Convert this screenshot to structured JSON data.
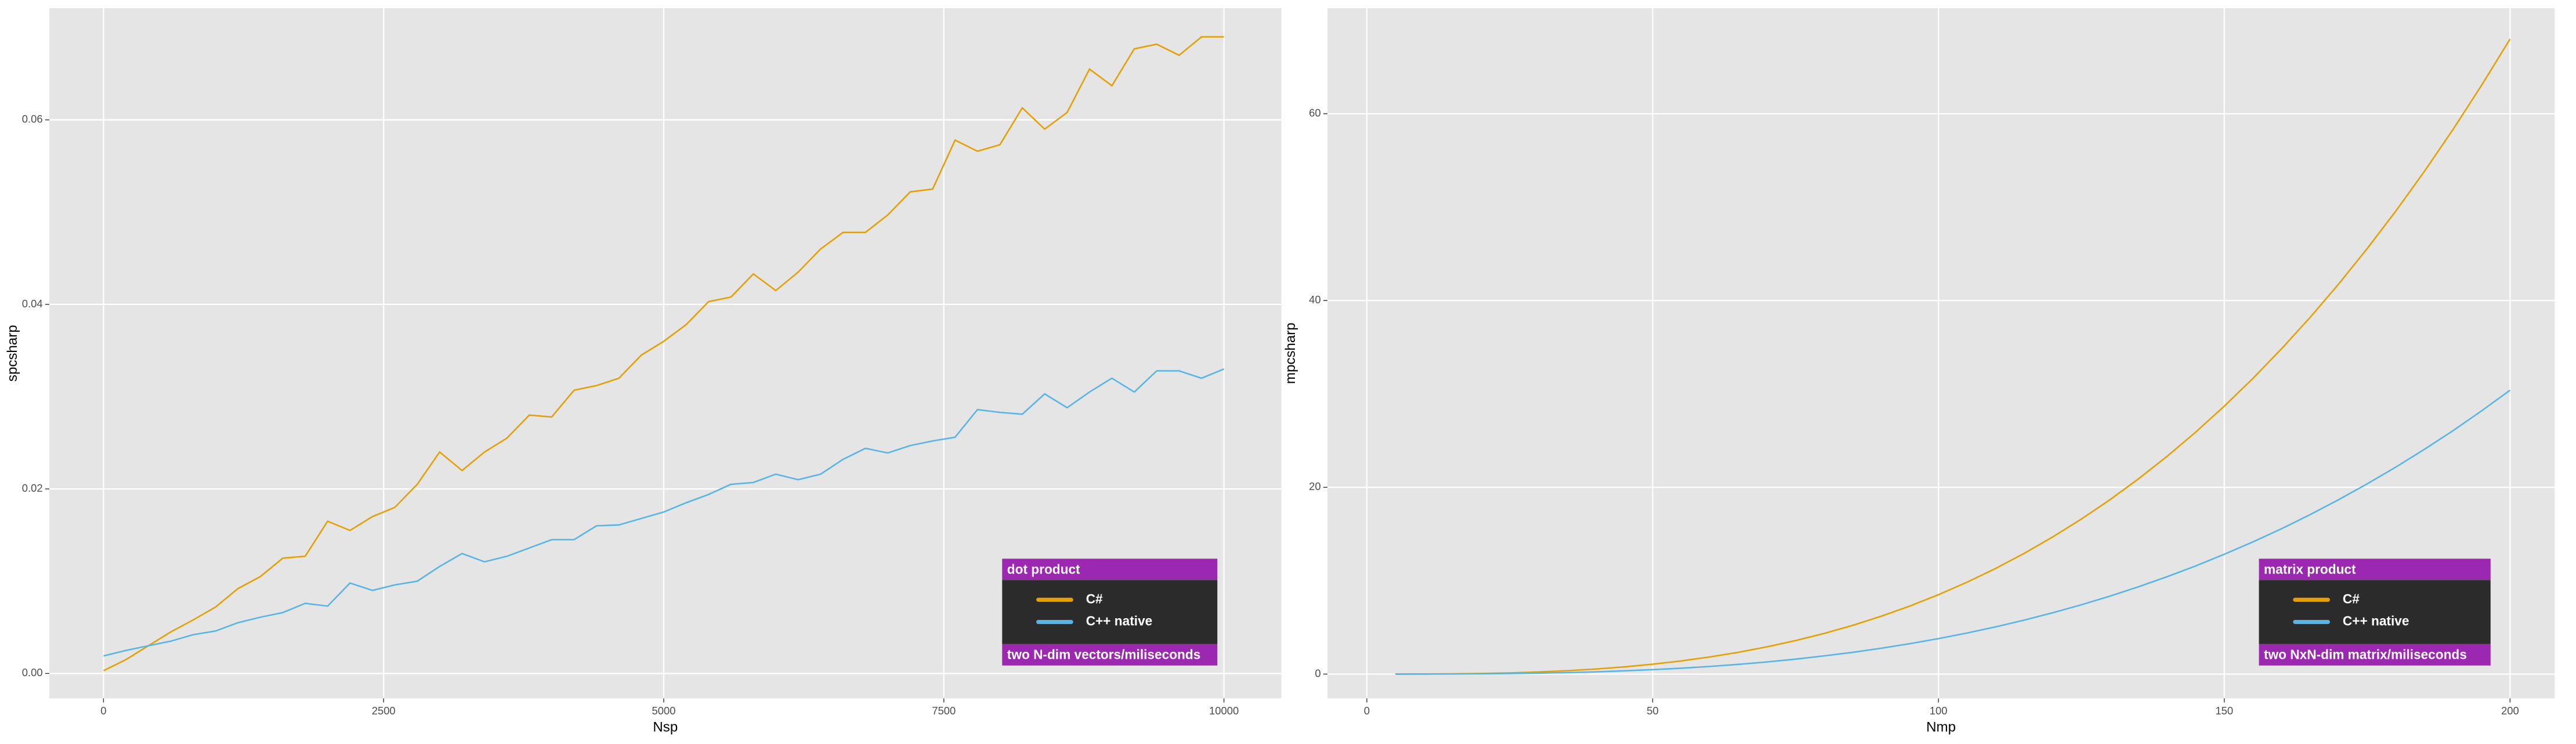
{
  "chart_data": [
    {
      "type": "line",
      "xlabel": "Nsp",
      "ylabel": "spcsharp",
      "x": [
        0,
        200,
        400,
        600,
        800,
        1000,
        1200,
        1400,
        1600,
        1800,
        2000,
        2200,
        2400,
        2600,
        2800,
        3000,
        3200,
        3400,
        3600,
        3800,
        4000,
        4200,
        4400,
        4600,
        4800,
        5000,
        5200,
        5400,
        5600,
        5800,
        6000,
        6200,
        6400,
        6600,
        6800,
        7000,
        7200,
        7400,
        7600,
        7800,
        8000,
        8200,
        8400,
        8600,
        8800,
        9000,
        9200,
        9400,
        9600,
        9800,
        10000
      ],
      "series": [
        {
          "name": "C#",
          "color": "#E69F00",
          "values": [
            0.0003,
            0.0015,
            0.003,
            0.0045,
            0.0058,
            0.0072,
            0.0092,
            0.0105,
            0.0125,
            0.0127,
            0.0165,
            0.0155,
            0.017,
            0.018,
            0.0205,
            0.024,
            0.022,
            0.024,
            0.0255,
            0.028,
            0.0278,
            0.0307,
            0.0312,
            0.032,
            0.0345,
            0.036,
            0.0378,
            0.0403,
            0.0408,
            0.0433,
            0.0415,
            0.0435,
            0.046,
            0.0478,
            0.0478,
            0.0497,
            0.0522,
            0.0525,
            0.0578,
            0.0566,
            0.0573,
            0.0613,
            0.059,
            0.0608,
            0.0655,
            0.0637,
            0.0677,
            0.0682,
            0.067,
            0.069,
            0.069
          ]
        },
        {
          "name": "C++ native",
          "color": "#56B4E9",
          "values": [
            0.0019,
            0.0025,
            0.003,
            0.0035,
            0.0042,
            0.0046,
            0.0055,
            0.0061,
            0.0066,
            0.0076,
            0.0073,
            0.0098,
            0.009,
            0.0096,
            0.01,
            0.0116,
            0.013,
            0.0121,
            0.0127,
            0.0136,
            0.0145,
            0.0145,
            0.016,
            0.0161,
            0.0168,
            0.0175,
            0.0185,
            0.0194,
            0.0205,
            0.0207,
            0.0216,
            0.021,
            0.0216,
            0.0232,
            0.0244,
            0.0239,
            0.0247,
            0.0252,
            0.0256,
            0.0286,
            0.0283,
            0.0281,
            0.0303,
            0.0288,
            0.0305,
            0.032,
            0.0305,
            0.0328,
            0.0328,
            0.032,
            0.033
          ]
        }
      ],
      "xlim": [
        -484,
        10513
      ],
      "ylim": [
        -0.0027,
        0.0721
      ],
      "xticks": [
        0,
        2500,
        5000,
        7500,
        10000
      ],
      "yticks": [
        {
          "value": 0,
          "label": "0.00"
        },
        0.02,
        0.04,
        0.06
      ],
      "grid": true,
      "legend_title": "dot product",
      "legend_note": "two N-dim vectors/miliseconds",
      "legend_position": "bottom-right"
    },
    {
      "type": "line",
      "xlabel": "Nmp",
      "ylabel": "mpcsharp",
      "x": [
        5,
        10,
        15,
        20,
        25,
        30,
        35,
        40,
        45,
        50,
        55,
        60,
        65,
        70,
        75,
        80,
        85,
        90,
        95,
        100,
        105,
        110,
        115,
        120,
        125,
        130,
        135,
        140,
        145,
        150,
        155,
        160,
        165,
        170,
        175,
        180,
        185,
        190,
        195,
        200
      ],
      "series": [
        {
          "name": "C#",
          "color": "#E69F00",
          "values": [
            0.001,
            0.0085,
            0.029,
            0.068,
            0.13,
            0.23,
            0.36,
            0.54,
            0.77,
            1.06,
            1.41,
            1.84,
            2.33,
            2.92,
            3.59,
            4.35,
            5.22,
            6.2,
            7.29,
            8.5,
            9.84,
            11.31,
            12.93,
            14.69,
            16.6,
            18.67,
            20.91,
            23.32,
            25.91,
            28.69,
            31.65,
            34.82,
            38.18,
            41.76,
            45.56,
            49.57,
            53.82,
            58.3,
            63.03,
            68
          ]
        },
        {
          "name": "C++ native",
          "color": "#56B4E9",
          "values": [
            0.0005,
            0.0038,
            0.013,
            0.03,
            0.06,
            0.1,
            0.16,
            0.24,
            0.35,
            0.48,
            0.63,
            0.82,
            1.04,
            1.3,
            1.6,
            1.95,
            2.33,
            2.77,
            3.26,
            3.8,
            4.4,
            5.06,
            5.78,
            6.57,
            7.42,
            8.35,
            9.35,
            10.43,
            11.58,
            12.83,
            14.15,
            15.56,
            17.07,
            18.67,
            20.37,
            22.16,
            24.06,
            26.06,
            28.18,
            30.4
          ]
        }
      ],
      "xlim": [
        -6.9,
        207.8
      ],
      "ylim": [
        -2.6,
        71.3
      ],
      "xticks": [
        0,
        50,
        100,
        150,
        200
      ],
      "yticks": [
        0,
        20,
        40,
        60
      ],
      "grid": true,
      "legend_title": "matrix product",
      "legend_note": "two NxN-dim matrix/miliseconds",
      "legend_position": "bottom-right"
    }
  ]
}
